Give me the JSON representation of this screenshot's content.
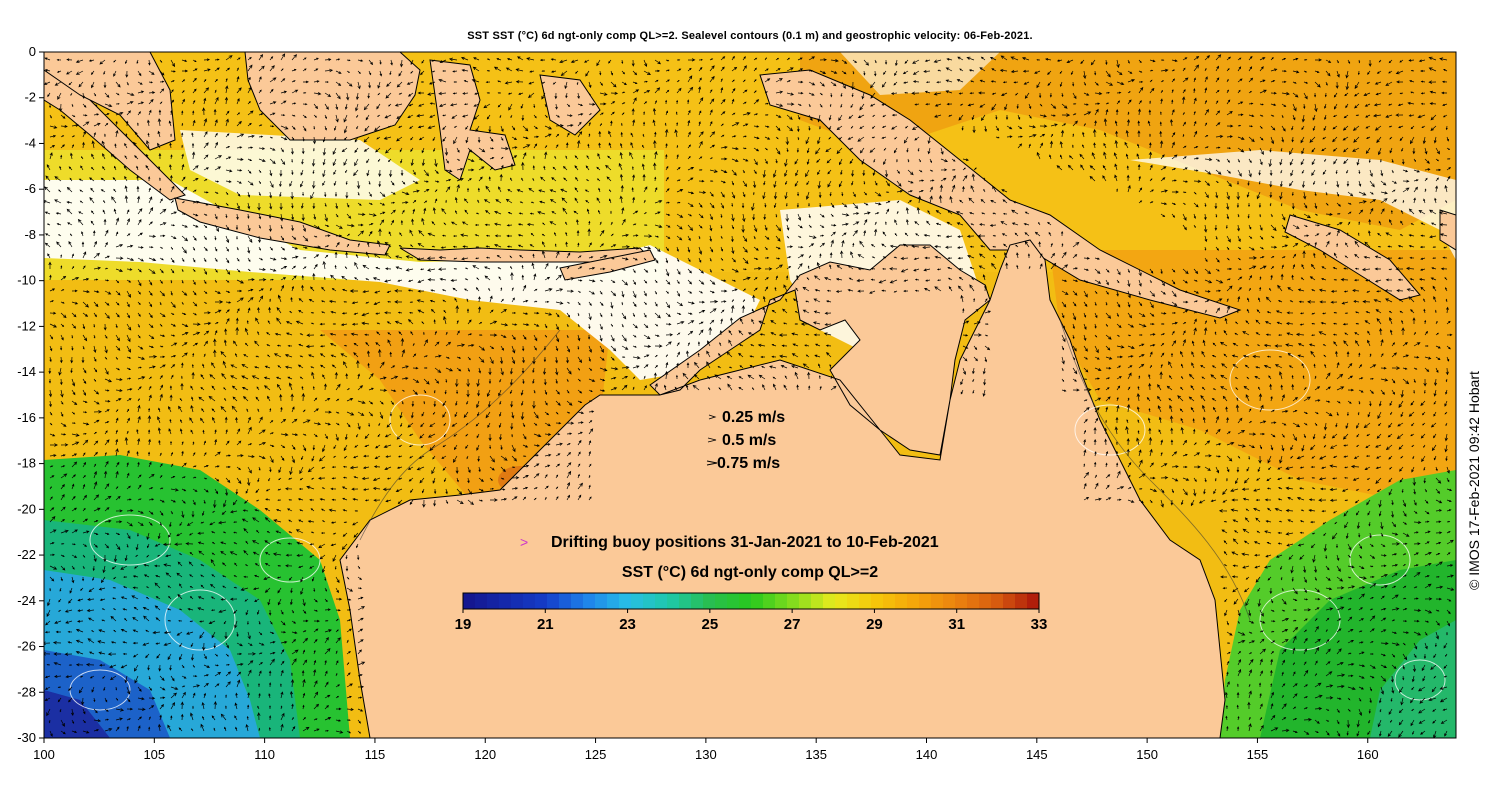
{
  "title": "SST SST (°C) 6d ngt-only comp QL>=2. Sealevel contours (0.1 m) and geostrophic velocity: 06-Feb-2021.",
  "credit": "© IMOS 17-Feb-2021 09:42 Hobart",
  "map_extent": {
    "lon": [
      100,
      164
    ],
    "lat": [
      -30,
      0
    ]
  },
  "x_ticks": [
    "100",
    "105",
    "110",
    "115",
    "120",
    "125",
    "130",
    "135",
    "140",
    "145",
    "150",
    "155",
    "160"
  ],
  "y_ticks": [
    "0",
    "-2",
    "-4",
    "-6",
    "-8",
    "-10",
    "-12",
    "-14",
    "-16",
    "-18",
    "-20",
    "-22",
    "-24",
    "-26",
    "-28",
    "-30"
  ],
  "velocity_legend": [
    {
      "label": "0.25 m/s",
      "speed": 0.25
    },
    {
      "label": "0.5 m/s",
      "speed": 0.5
    },
    {
      "label": "0.75 m/s",
      "speed": 0.75
    }
  ],
  "buoy_legend": {
    "symbol": ">",
    "label": "Drifting buoy positions 31-Jan-2021 to 10-Feb-2021",
    "color": "#cc33cc"
  },
  "colorbar": {
    "title": "SST (°C) 6d ngt-only comp QL>=2",
    "min": 19,
    "max": 33,
    "tick_labels": [
      "19",
      "21",
      "23",
      "25",
      "27",
      "29",
      "31",
      "33"
    ]
  },
  "colors": {
    "land": "#fbc998",
    "ocean_missing": "#ffffff"
  }
}
